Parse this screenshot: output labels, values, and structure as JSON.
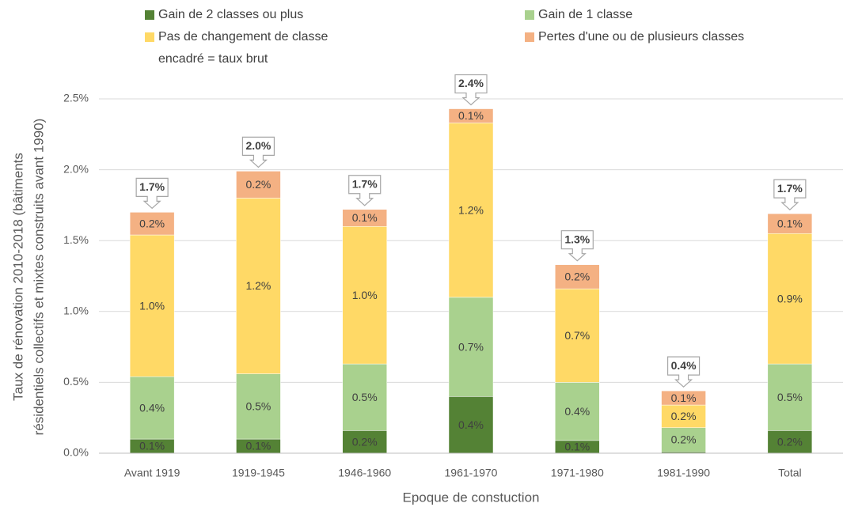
{
  "chart_data": {
    "type": "stacked_bar",
    "legend_note": "encadré = taux brut",
    "y_label": [
      "Taux de rénovation 2010-2018 (bâtiments",
      "résidentiels collectifs et mixtes construits avant 1990)"
    ],
    "x_label": "Epoque de constuction",
    "categories": [
      "Avant 1919",
      "1919-1945",
      "1946-1960",
      "1961-1970",
      "1971-1980",
      "1981-1990",
      "Total"
    ],
    "series": [
      {
        "name": "Gain de 2 classes ou plus",
        "color": "#548235",
        "values": [
          0.1,
          0.1,
          0.16,
          0.4,
          0.09,
          0.01,
          0.16
        ],
        "value_labels": [
          "0.1%",
          "0.1%",
          "0.2%",
          "0.4%",
          "0.1%",
          null,
          "0.2%"
        ]
      },
      {
        "name": "Gain de 1 classe",
        "color": "#a9d18e",
        "values": [
          0.44,
          0.46,
          0.47,
          0.7,
          0.41,
          0.17,
          0.47
        ],
        "value_labels": [
          "0.4%",
          "0.5%",
          "0.5%",
          "0.7%",
          "0.4%",
          "0.2%",
          "0.5%"
        ]
      },
      {
        "name": "Pas de changement de classe",
        "color": "#ffd966",
        "values": [
          1.0,
          1.24,
          0.97,
          1.23,
          0.66,
          0.16,
          0.92
        ],
        "value_labels": [
          "1.0%",
          "1.2%",
          "1.0%",
          "1.2%",
          "0.7%",
          "0.2%",
          "0.9%"
        ]
      },
      {
        "name": "Pertes d'une ou de plusieurs classes",
        "color": "#f4b183",
        "values": [
          0.16,
          0.19,
          0.12,
          0.1,
          0.17,
          0.1,
          0.14
        ],
        "value_labels": [
          "0.2%",
          "0.2%",
          "0.1%",
          "0.1%",
          "0.2%",
          "0.1%",
          "0.1%"
        ]
      }
    ],
    "totals": [
      1.7,
      1.99,
      1.72,
      2.43,
      1.33,
      0.44,
      1.69
    ],
    "total_labels": [
      "1.7%",
      "2.0%",
      "1.7%",
      "2.4%",
      "1.3%",
      "0.4%",
      "1.7%"
    ],
    "ylim": [
      0,
      2.5
    ],
    "yticks": [
      {
        "value": 0,
        "label": "0.0%"
      },
      {
        "value": 0.5,
        "label": "0.5%"
      },
      {
        "value": 1.0,
        "label": "1.0%"
      },
      {
        "value": 1.5,
        "label": "1.5%"
      },
      {
        "value": 2.0,
        "label": "2.0%"
      },
      {
        "value": 2.5,
        "label": "2.5%"
      }
    ],
    "grid": true
  }
}
